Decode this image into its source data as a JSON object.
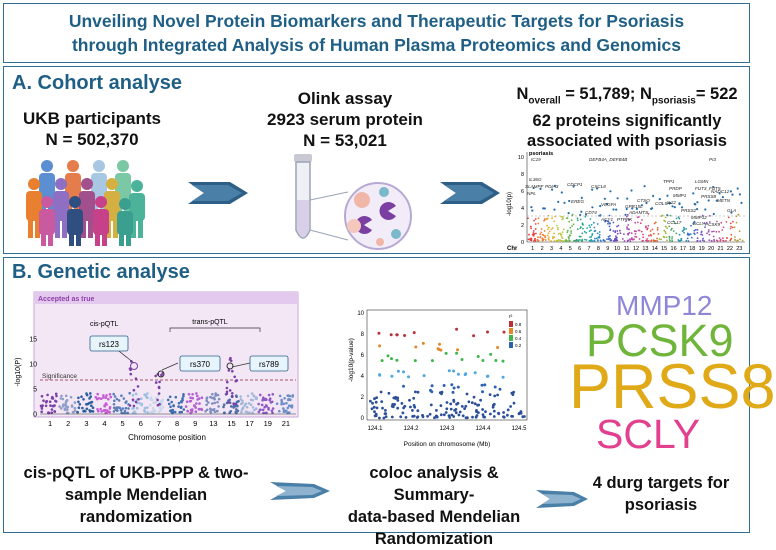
{
  "title": {
    "line1": "Unveiling Novel Protein Biomarkers and Therapeutic Targets for Psoriasis",
    "line2": "through Integrated Analysis of Human Plasma Proteomics and Genomics"
  },
  "section_a": {
    "heading": "A. Cohort analyse",
    "ukb": {
      "line1": "UKB participants",
      "line2": "N = 502,370"
    },
    "olink": {
      "line1": "Olink assay",
      "line2": "2923 serum protein",
      "line3": "N = 53,021"
    },
    "result": {
      "n_overall_label": "N",
      "n_overall_sub": "overall",
      "n_overall_value": " =  51,789; ",
      "n_psoriasis_label": "N",
      "n_psoriasis_sub": "psoriasis",
      "n_psoriasis_value": "= 522",
      "line2": "62 proteins significantly",
      "line3": "associated with psoriasis"
    },
    "manhattan": {
      "ylabel": "-log10(p)",
      "chr_label": "Chr",
      "yticks": [
        "0",
        "2",
        "4",
        "6",
        "8",
        "10"
      ],
      "chromosomes": [
        "1",
        "2",
        "3",
        "4",
        "5",
        "6",
        "7",
        "8",
        "9",
        "10",
        "11",
        "12",
        "13",
        "14",
        "15",
        "16",
        "17",
        "18",
        "19",
        "20",
        "21",
        "22",
        "23"
      ],
      "top_label": "psoriasis",
      "genes": [
        "IC19",
        "DEFB4A_DEFB4B",
        "PI3",
        "IL36G",
        "SLAMPF",
        "NPL",
        "PDIA3",
        "CDCP1",
        "CXCL8",
        "TPP1",
        "LGMN",
        "PRDP",
        "FUT3_FUT5",
        "MMP1",
        "PRSS8",
        "NADC12",
        "COL5A",
        "IL22",
        "METN",
        "EREG",
        "VEGFA",
        "GPR15L",
        "CTSO",
        "GLA",
        "CD74",
        "ADAMTS",
        "PRSS2",
        "ACY1",
        "PTPRK",
        "MMP12",
        "CCL17",
        "SCLY",
        "PCSK9"
      ]
    }
  },
  "section_b": {
    "heading": "B. Genetic analyse",
    "pqtl_plot": {
      "banner": "Accepted as true",
      "cis_label": "cis-pQTL",
      "trans_label": "trans-pQTL",
      "significance_label": "Significance",
      "ylabel": "-log10(P)",
      "yticks": [
        "0",
        "5",
        "10",
        "15"
      ],
      "xlabel": "Chromosome position",
      "xticks": [
        "1",
        "2",
        "3",
        "4",
        "5",
        "6",
        "7",
        "8",
        "9",
        "13",
        "15",
        "17",
        "19",
        "21"
      ],
      "snps": [
        "rs123",
        "rs370",
        "rs789"
      ]
    },
    "locus_plot": {
      "ylabel": "-log10(p-value)",
      "xlabel": "Position on chromosome (Mb)",
      "yticks": [
        "0",
        "2",
        "4",
        "6",
        "8",
        "10"
      ],
      "xticks": [
        "124.1",
        "124.2",
        "124.3",
        "124.4",
        "124.5"
      ],
      "legend_title": "r²",
      "legend_values": [
        "0.8",
        "0.6",
        "0.4",
        "0.2"
      ]
    },
    "word_cloud": {
      "w1": "MMP12",
      "w2": "PCSK9",
      "w3": "PRSS8",
      "w4": "SCLY"
    },
    "bottom": {
      "c1": {
        "line1": "cis-pQTL of UKB-PPP & two-",
        "line2": "sample Mendelian",
        "line3": "randomization"
      },
      "c2": {
        "line1": "coloc analysis & Summary-",
        "line2": "data-based Mendelian",
        "line3": "Randomization"
      },
      "c3": {
        "line1": "4 durg targets for",
        "line2": "psoriasis"
      }
    }
  },
  "colors": {
    "heading": "#1f5f86",
    "arrow": "#2d5f86",
    "mmp12": "#8f86d8",
    "pcsk9": "#6fb53a",
    "prss8": "#e0a918",
    "scly": "#e23f8f"
  }
}
